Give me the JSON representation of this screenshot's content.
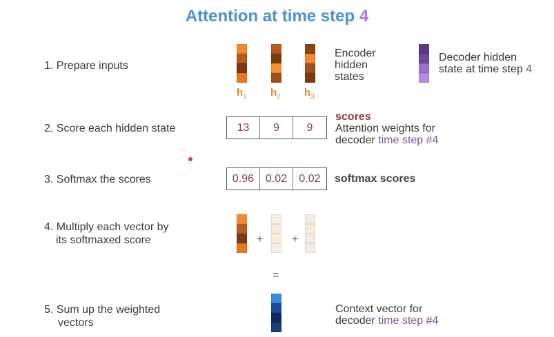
{
  "title": {
    "text": "Attention at time step ",
    "number": "4"
  },
  "steps": [
    {
      "label": "1.  Prepare inputs"
    },
    {
      "label": "2.  Score each hidden state"
    },
    {
      "label": "3.  Softmax the scores"
    },
    {
      "label_line1": "4. Multiply each vector by",
      "label_line2": "its softmaxed score"
    },
    {
      "label_line1": "5. Sum up the weighted",
      "label_line2": "vectors"
    }
  ],
  "encoder": {
    "label_line1": "Encoder",
    "label_line2": "hidden",
    "label_line3": "states",
    "vectors": [
      {
        "name": "h",
        "sub": "1",
        "colors": [
          "#f08a30",
          "#b85a1e",
          "#7a3a12",
          "#e8781e"
        ]
      },
      {
        "name": "h",
        "sub": "2",
        "colors": [
          "#b85a1e",
          "#7a3a12",
          "#f5922e",
          "#a0501a"
        ]
      },
      {
        "name": "h",
        "sub": "3",
        "colors": [
          "#8a4416",
          "#f08a30",
          "#a0501a",
          "#7a3a12"
        ]
      }
    ]
  },
  "decoder": {
    "label_line1": "Decoder hidden",
    "label_line2": "state at time step ",
    "label_number": "4",
    "colors": [
      "#5a3a82",
      "#6e4a9a",
      "#9a6fcf",
      "#b58ae0"
    ]
  },
  "scores": {
    "values": [
      "13",
      "9",
      "9"
    ],
    "title": "scores",
    "desc_line1": "Attention weights for",
    "desc_line2": "decoder ",
    "desc_highlight": "time step #4"
  },
  "softmax": {
    "values": [
      "0.96",
      "0.02",
      "0.02"
    ],
    "label": "softmax scores"
  },
  "weighted": {
    "plus": "+",
    "vectors": [
      [
        "#f08a30",
        "#b85a1e",
        "#7a3a12",
        "#e8781e"
      ],
      [
        "#f7eee9",
        "#f7ebe0",
        "#faecd8",
        "#f6ede6"
      ],
      [
        "#f5ece6",
        "#faecdc",
        "#f4eae4",
        "#f5ece6"
      ]
    ]
  },
  "equals": "=",
  "context": {
    "colors": [
      "#3a8ae0",
      "#1a4e96",
      "#0e2a5a",
      "#1a3e78"
    ],
    "label_line1": "Context vector for",
    "label_line2": "decoder ",
    "label_highlight": "time step #4"
  },
  "cursor_dot_color": "#e8383a"
}
